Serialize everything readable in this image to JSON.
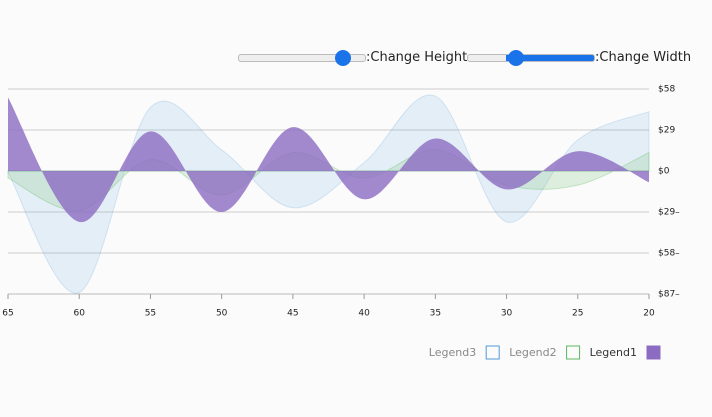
{
  "controls": {
    "height_label": ":Change Height",
    "width_label": ":Change Width"
  },
  "chart_data": {
    "type": "area",
    "x": [
      65,
      60,
      55,
      50,
      45,
      40,
      35,
      30,
      25,
      20
    ],
    "xlim": [
      65,
      20
    ],
    "xticks": [
      65,
      60,
      55,
      50,
      45,
      40,
      35,
      30,
      25,
      20
    ],
    "ylim": [
      -87,
      58
    ],
    "yticks": [
      {
        "value": 58,
        "label": "$58"
      },
      {
        "value": 29,
        "label": "$29"
      },
      {
        "value": 0,
        "label": "$0"
      },
      {
        "value": -29,
        "label": "$29–"
      },
      {
        "value": -58,
        "label": "$58–"
      },
      {
        "value": -87,
        "label": "$87–"
      }
    ],
    "grid": true,
    "series": [
      {
        "name": "Legend1",
        "color": "#8c6cc2",
        "values": [
          52,
          -36,
          28,
          -29,
          31,
          -20,
          23,
          -13,
          14,
          -8
        ]
      },
      {
        "name": "Legend2",
        "color": "#5cb85c",
        "values": [
          -5,
          -28,
          8,
          -17,
          13,
          -5,
          15,
          -10,
          -10,
          13
        ]
      },
      {
        "name": "Legend3",
        "color": "#4f9ad8",
        "values": [
          -1,
          -86,
          45,
          15,
          -26,
          6,
          53,
          -36,
          22,
          42
        ]
      }
    ]
  }
}
